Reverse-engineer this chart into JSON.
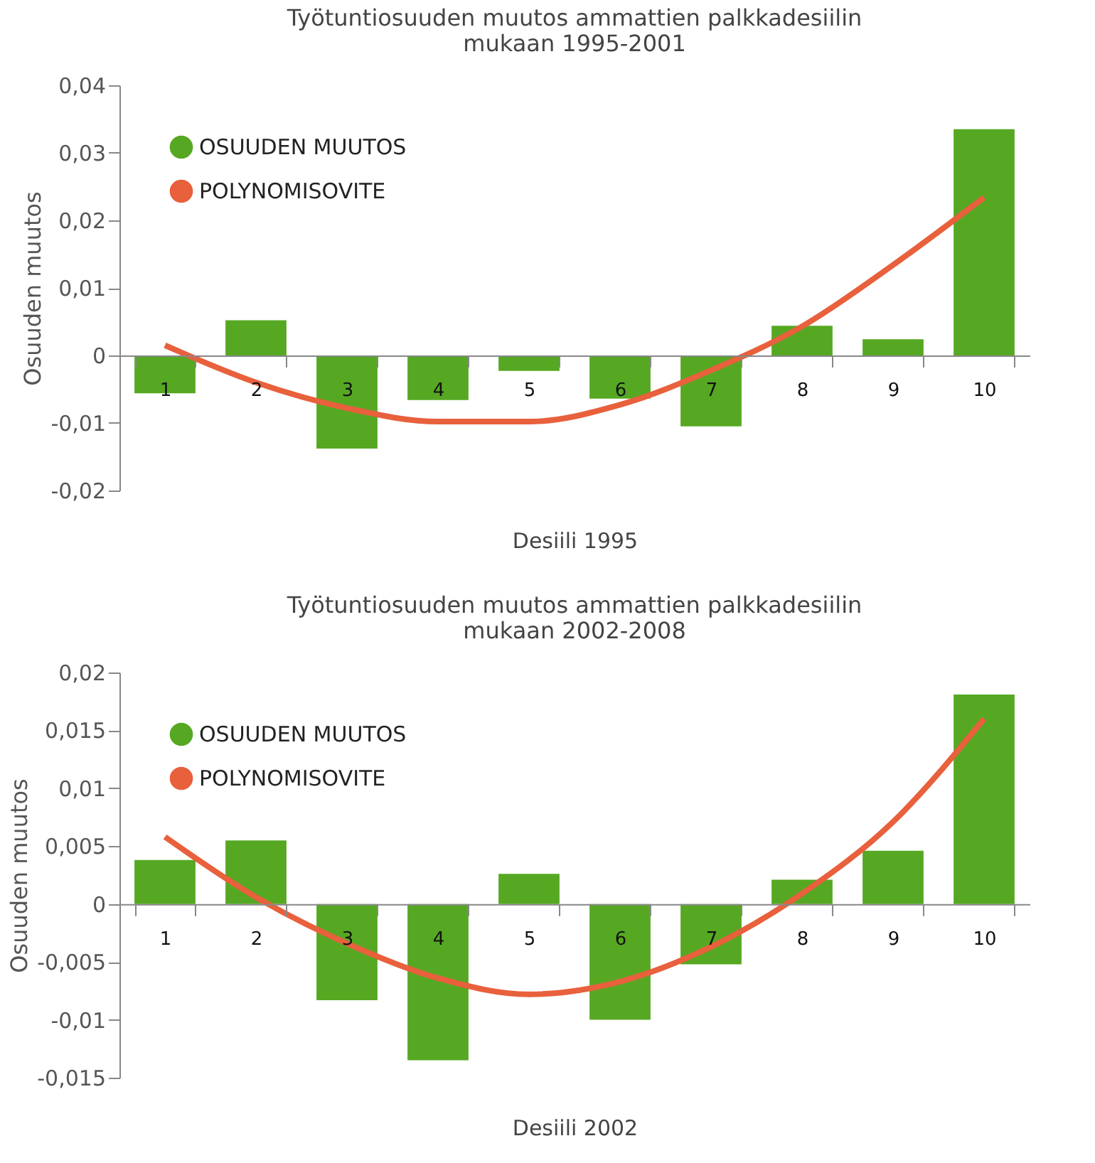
{
  "chart_data": [
    {
      "type": "bar",
      "title": "Työtuntiosuuden muutos ammattien palkkadesiilin\nmukaan 1995-2001",
      "xlabel": "Desiili 1995",
      "ylabel": "Osuuden muutos",
      "categories": [
        "1",
        "2",
        "3",
        "4",
        "5",
        "6",
        "7",
        "8",
        "9",
        "10"
      ],
      "series": [
        {
          "name": "OSUUDEN MUUTOS",
          "color": "#56a823",
          "values": [
            -0.0056,
            0.0052,
            -0.0138,
            -0.0066,
            -0.0023,
            -0.0064,
            -0.0105,
            0.0044,
            0.0024,
            0.0335
          ]
        },
        {
          "name": "POLYNOMISOVITE",
          "type": "line",
          "color": "#e8603c",
          "values": [
            0.0015,
            -0.004,
            -0.0078,
            -0.0098,
            -0.0098,
            -0.0073,
            -0.0022,
            0.0043,
            0.0134,
            0.0234
          ]
        }
      ],
      "ylim": [
        -0.02,
        0.04
      ],
      "yticks": [
        {
          "value": -0.02,
          "label": "-0,02"
        },
        {
          "value": -0.01,
          "label": "-0,01"
        },
        0,
        {
          "value": 0.01,
          "label": "0,01"
        },
        {
          "value": 0.02,
          "label": "0,02"
        },
        {
          "value": 0.03,
          "label": "0,03"
        },
        {
          "value": 0.04,
          "label": "0,04"
        }
      ],
      "grid": false,
      "legend": "top left",
      "line_style": "solid",
      "marker": "none"
    },
    {
      "type": "bar",
      "title": "Työtuntiosuuden muutos ammattien palkkadesiilin\nmukaan 2002-2008",
      "xlabel": "Desiili 2002",
      "ylabel": "Osuuden muutos",
      "categories": [
        "1",
        "2",
        "3",
        "4",
        "5",
        "6",
        "7",
        "8",
        "9",
        "10"
      ],
      "series": [
        {
          "name": "OSUUDEN MUUTOS",
          "color": "#56a823",
          "values": [
            0.0038,
            0.0055,
            -0.0083,
            -0.0135,
            0.0026,
            -0.01,
            -0.0052,
            0.0021,
            0.0046,
            0.0181
          ]
        },
        {
          "name": "POLYNOMISOVITE",
          "type": "line",
          "color": "#e8603c",
          "values": [
            0.0058,
            0.0006,
            -0.0034,
            -0.0064,
            -0.0078,
            -0.0067,
            -0.0037,
            0.0009,
            0.0071,
            0.016
          ]
        }
      ],
      "ylim": [
        -0.015,
        0.02
      ],
      "yticks": [
        {
          "value": -0.015,
          "label": "-0,015"
        },
        {
          "value": -0.01,
          "label": "-0,01"
        },
        {
          "value": -0.005,
          "label": "-0,005"
        },
        0,
        {
          "value": 0.005,
          "label": "0,005"
        },
        {
          "value": 0.01,
          "label": "0,01"
        },
        {
          "value": 0.015,
          "label": "0,015"
        },
        {
          "value": 0.02,
          "label": "0,02"
        }
      ],
      "grid": false,
      "legend": "top left",
      "line_style": "solid",
      "marker": "none"
    }
  ]
}
